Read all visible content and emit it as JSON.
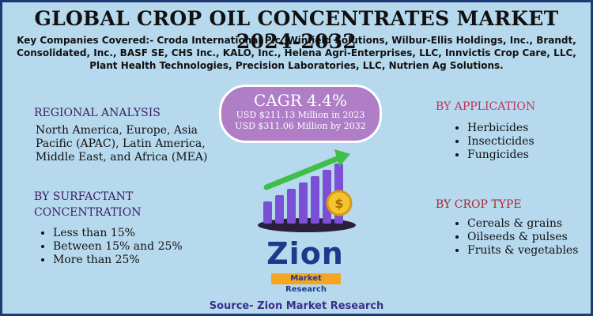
{
  "title": "GLOBAL CROP OIL CONCENTRATES MARKET 2024-2032",
  "companies": "Key Companies Covered:- Croda International Plc, Winfield Solutions, Wilbur-Ellis Holdings, Inc., Brandt, Consolidated, Inc., BASF SE, CHS Inc., KALO, Inc., Helena Agri-Enterprises, LLC, Innvictis Crop Care, LLC, Plant Health Technologies, Precision Laboratories, LLC, Nutrien Ag Solutions.",
  "cagr": {
    "title": "CAGR 4.4%",
    "line1": "USD $211.13 Million in 2023",
    "line2": "USD $311.06 Million by 2032"
  },
  "regional": {
    "heading": "REGIONAL ANALYSIS",
    "text": "North America, Europe, Asia Pacific (APAC), Latin America, Middle East, and Africa (MEA)"
  },
  "surfactant": {
    "heading": "BY SURFACTANT CONCENTRATION",
    "items": [
      "Less than 15%",
      "Between 15% and 25%",
      "More than 25%"
    ]
  },
  "application": {
    "heading": "BY APPLICATION",
    "items": [
      "Herbicides",
      "Insecticides",
      "Fungicides"
    ]
  },
  "crop_type": {
    "heading": "BY CROP TYPE",
    "items": [
      "Cereals & grains",
      "Oilseeds & pulses",
      "Fruits & vegetables"
    ]
  },
  "graphic": {
    "icon": "growth-bar-chart-with-arrow-and-coin",
    "bar_levels": [
      0.35,
      0.45,
      0.55,
      0.65,
      0.75,
      0.85,
      0.95
    ],
    "coin_symbol": "$"
  },
  "logo": {
    "main": "Zion",
    "sub": "Market Research"
  },
  "source": "Source- Zion Market Research",
  "colors": {
    "background": "#b6d9ee",
    "border": "#1d3a73",
    "cagr_pill": "#b07ec6",
    "heading_purple": "#3a1f5e",
    "heading_pink": "#c0365a",
    "heading_red": "#b0262f",
    "bars": "#7b4fd6",
    "arrow": "#3fbf4a",
    "coin": "#f4c430",
    "logo_blue": "#1b3a8c",
    "logo_orange": "#f4a623",
    "source_text": "#3c2f8c"
  }
}
